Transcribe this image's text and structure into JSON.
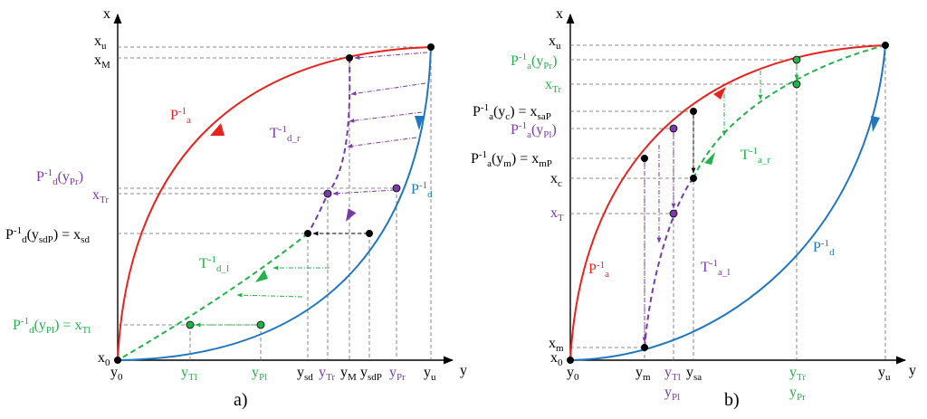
{
  "colors": {
    "red": "#e8221d",
    "blue": "#1f77c0",
    "purple": "#7a3aa8",
    "green": "#21b24a",
    "black": "#000000"
  },
  "panel_a": {
    "caption": "a)",
    "axis_x": "x",
    "axis_y": "y",
    "label_xu": "x",
    "label_xu_sub": "u",
    "label_xM": "x",
    "label_xM_sub": "M",
    "label_x0": "x",
    "label_x0_sub": "0",
    "label_Pd_yPr": "P",
    "label_Pd_yPr_sup": "-1",
    "label_Pd_yPr_sub": "d",
    "label_Pd_yPr_tail": "(y",
    "label_Pd_yPr_tsub": "Pr",
    "label_Pd_yPr_end": ")",
    "label_xTr": "x",
    "label_xTr_sub": "Tr",
    "label_xsd_main": "P",
    "label_xsd_sup": "-1",
    "label_xsd_sub": "d",
    "label_xsd_tail": "(y",
    "label_xsd_tsub": "sdP",
    "label_xsd_end": ") = x",
    "label_xsd_esub": "sd",
    "label_xTl_main": "P",
    "label_xTl_sup": "-1",
    "label_xTl_sub": "d",
    "label_xTl_tail": "(y",
    "label_xTl_tsub": "Pl",
    "label_xTl_end": ") = x",
    "label_xTl_esub": "Tl",
    "curve_Pa": "P",
    "curve_Pa_sup": "-1",
    "curve_Pa_sub": "a",
    "curve_Pd": "P",
    "curve_Pd_sup": "-1",
    "curve_Pd_sub": "d",
    "curve_Tdr": "T",
    "curve_Tdr_sup": "-1",
    "curve_Tdr_sub": "d_r",
    "curve_Tdl": "T",
    "curve_Tdl_sup": "-1",
    "curve_Tdl_sub": "d_l",
    "y_ticks": [
      {
        "n": "y",
        "s": "0",
        "c": "black"
      },
      {
        "n": "y",
        "s": "Tl",
        "c": "green"
      },
      {
        "n": "y",
        "s": "Pl",
        "c": "green"
      },
      {
        "n": "y",
        "s": "sd",
        "c": "black"
      },
      {
        "n": "y",
        "s": "Tr",
        "c": "purple"
      },
      {
        "n": "y",
        "s": "M",
        "c": "black"
      },
      {
        "n": "y",
        "s": "sdP",
        "c": "black"
      },
      {
        "n": "y",
        "s": "Pr",
        "c": "purple"
      },
      {
        "n": "y",
        "s": "u",
        "c": "black"
      }
    ]
  },
  "panel_b": {
    "caption": "b)",
    "axis_x": "x",
    "axis_y": "y",
    "label_xu": "x",
    "label_xu_sub": "u",
    "label_x0": "x",
    "label_x0_sub": "0",
    "label_xm": "x",
    "label_xm_sub": "m",
    "label_xc": "x",
    "label_xc_sub": "c",
    "label_xT": "x",
    "label_xT_sub": "T",
    "label_xTr": "x",
    "label_xTr_sub": "Tr",
    "label_Pa_yPr": "P",
    "label_Pa_yPr_sup": "-1",
    "label_Pa_yPr_sub": "a",
    "label_Pa_yPr_tail": "(y",
    "label_Pa_yPr_tsub": "Pr",
    "label_Pa_yPr_end": ")",
    "label_Pa_yc": "P",
    "label_Pa_yc_sup": "-1",
    "label_Pa_yc_sub": "a",
    "label_Pa_yc_tail": "(y",
    "label_Pa_yc_tsub": "c",
    "label_Pa_yc_end": ") = x",
    "label_Pa_yc_esub": "saP",
    "label_Pa_yPl": "P",
    "label_Pa_yPl_sup": "-1",
    "label_Pa_yPl_sub": "a",
    "label_Pa_yPl_tail": "(y",
    "label_Pa_yPl_tsub": "Pl",
    "label_Pa_yPl_end": ")",
    "label_Pa_ym": "P",
    "label_Pa_ym_sup": "-1",
    "label_Pa_ym_sub": "a",
    "label_Pa_ym_tail": "(y",
    "label_Pa_ym_tsub": "m",
    "label_Pa_ym_end": ") = x",
    "label_Pa_ym_esub": "mP",
    "curve_Pa": "P",
    "curve_Pa_sup": "-1",
    "curve_Pa_sub": "a",
    "curve_Pd": "P",
    "curve_Pd_sup": "-1",
    "curve_Pd_sub": "d",
    "curve_Tar": "T",
    "curve_Tar_sup": "-1",
    "curve_Tar_sub": "a_r",
    "curve_Tal": "T",
    "curve_Tal_sup": "-1",
    "curve_Tal_sub": "a_l",
    "y_ticks": [
      {
        "n": "y",
        "s": "0",
        "c": "black"
      },
      {
        "n": "y",
        "s": "m",
        "c": "black"
      },
      {
        "n": "y",
        "s": "Tl",
        "c": "purple"
      },
      {
        "n": "y",
        "s": "sa",
        "c": "black"
      },
      {
        "n": "y",
        "s": "Tr",
        "c": "green"
      },
      {
        "n": "y",
        "s": "u",
        "c": "black"
      }
    ],
    "y_ticks2": [
      {
        "n": "y",
        "s": "Pl",
        "c": "purple"
      },
      {
        "n": "y",
        "s": "Pr",
        "c": "green"
      }
    ]
  }
}
